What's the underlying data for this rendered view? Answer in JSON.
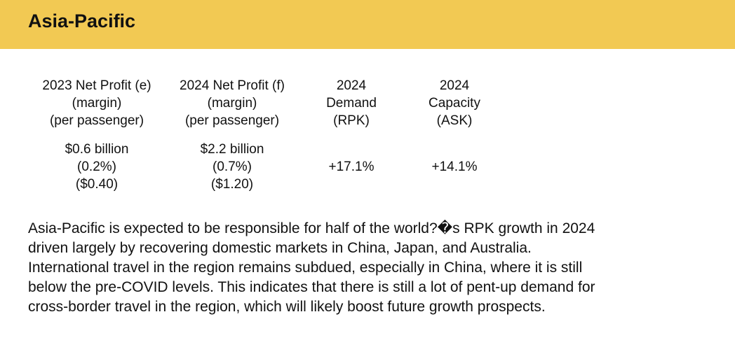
{
  "header": {
    "title": "Asia-Pacific"
  },
  "stats": [
    {
      "label": "2023 Net Profit (e)\n(margin)\n(per passenger)",
      "value": "$0.6 billion\n(0.2%)\n($0.40)"
    },
    {
      "label": "2024 Net Profit (f)\n(margin)\n(per passenger)",
      "value": "$2.2 billion\n(0.7%)\n($1.20)"
    },
    {
      "label": "2024\nDemand\n(RPK)",
      "value": "\n+17.1%"
    },
    {
      "label": "2024\nCapacity\n(ASK)",
      "value": "\n+14.1%"
    }
  ],
  "body": {
    "paragraph": "Asia-Pacific is expected to be responsible for half of the world?�s RPK growth in 2024\ndriven largely by recovering domestic markets in China, Japan, and Australia.\nInternational travel in the region remains subdued, especially in China, where it is still\nbelow the pre-COVID levels. This indicates that there is still a lot of pent-up demand for\ncross-border travel in the region, which will likely boost future growth prospects."
  },
  "colors": {
    "header_bg": "#f2c953",
    "text": "#111111",
    "background": "#ffffff"
  }
}
